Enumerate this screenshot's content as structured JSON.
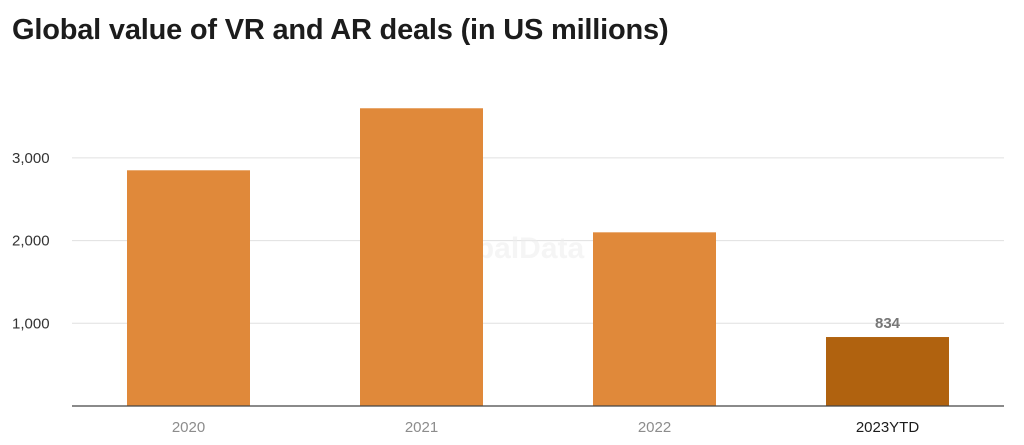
{
  "chart_data": {
    "type": "bar",
    "title": "Global value of VR and AR deals (in US millions)",
    "categories": [
      "2020",
      "2021",
      "2022",
      "2023YTD"
    ],
    "values": [
      2850,
      3600,
      2100,
      834
    ],
    "highlight_index": 3,
    "data_labels": [
      null,
      null,
      null,
      "834"
    ],
    "ylim": [
      0,
      3700
    ],
    "yticks": [
      1000,
      2000,
      3000
    ],
    "ytick_labels": [
      "1,000",
      "2,000",
      "3,000"
    ],
    "xlabel": "",
    "ylabel": "",
    "grid": true,
    "legend": "none",
    "colors": {
      "bar": "#e0893a",
      "highlight_bar": "#b0620f",
      "grid": "#e0e0e0",
      "axis": "#444444"
    },
    "watermark": "GlobalData"
  }
}
